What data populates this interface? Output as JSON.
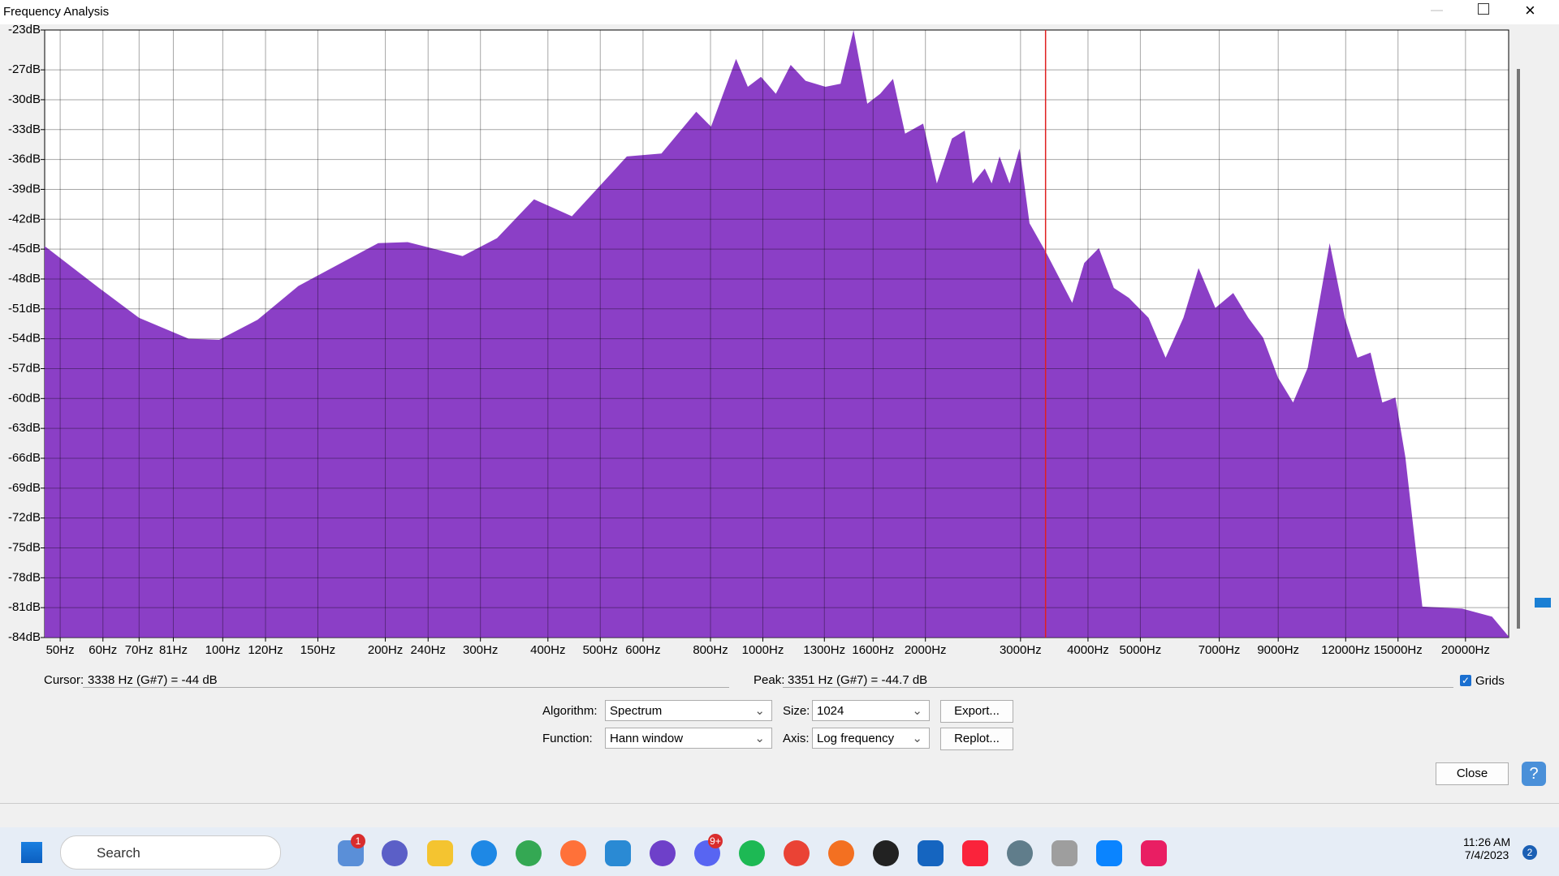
{
  "window": {
    "title": "Frequency Analysis"
  },
  "chart_data": {
    "type": "area",
    "color": "#8b3fc6",
    "log_x": true,
    "grid": true,
    "xlim": [
      46.8,
      24040
    ],
    "ylim": [
      -84,
      -23
    ],
    "xticks": [
      {
        "value": 50,
        "label": "50Hz"
      },
      {
        "value": 60,
        "label": "60Hz"
      },
      {
        "value": 70,
        "label": "70Hz"
      },
      {
        "value": 81,
        "label": "81Hz"
      },
      {
        "value": 100,
        "label": "100Hz"
      },
      {
        "value": 120,
        "label": "120Hz"
      },
      {
        "value": 150,
        "label": "150Hz"
      },
      {
        "value": 200,
        "label": "200Hz"
      },
      {
        "value": 240,
        "label": "240Hz"
      },
      {
        "value": 300,
        "label": "300Hz"
      },
      {
        "value": 400,
        "label": "400Hz"
      },
      {
        "value": 500,
        "label": "500Hz"
      },
      {
        "value": 600,
        "label": "600Hz"
      },
      {
        "value": 800,
        "label": "800Hz"
      },
      {
        "value": 1000,
        "label": "1000Hz"
      },
      {
        "value": 1300,
        "label": "1300Hz"
      },
      {
        "value": 1600,
        "label": "1600Hz"
      },
      {
        "value": 2000,
        "label": "2000Hz"
      },
      {
        "value": 3000,
        "label": "3000Hz"
      },
      {
        "value": 4000,
        "label": "4000Hz"
      },
      {
        "value": 5000,
        "label": "5000Hz"
      },
      {
        "value": 7000,
        "label": "7000Hz"
      },
      {
        "value": 9000,
        "label": "9000Hz"
      },
      {
        "value": 12000,
        "label": "12000Hz"
      },
      {
        "value": 15000,
        "label": "15000Hz"
      },
      {
        "value": 20000,
        "label": "20000Hz"
      }
    ],
    "yticks": [
      {
        "value": -23,
        "label": "-23dB"
      },
      {
        "value": -27,
        "label": "-27dB"
      },
      {
        "value": -30,
        "label": "-30dB"
      },
      {
        "value": -33,
        "label": "-33dB"
      },
      {
        "value": -36,
        "label": "-36dB"
      },
      {
        "value": -39,
        "label": "-39dB"
      },
      {
        "value": -42,
        "label": "-42dB"
      },
      {
        "value": -45,
        "label": "-45dB"
      },
      {
        "value": -48,
        "label": "-48dB"
      },
      {
        "value": -51,
        "label": "-51dB"
      },
      {
        "value": -54,
        "label": "-54dB"
      },
      {
        "value": -57,
        "label": "-57dB"
      },
      {
        "value": -60,
        "label": "-60dB"
      },
      {
        "value": -63,
        "label": "-63dB"
      },
      {
        "value": -66,
        "label": "-66dB"
      },
      {
        "value": -69,
        "label": "-69dB"
      },
      {
        "value": -72,
        "label": "-72dB"
      },
      {
        "value": -75,
        "label": "-75dB"
      },
      {
        "value": -78,
        "label": "-78dB"
      },
      {
        "value": -81,
        "label": "-81dB"
      },
      {
        "value": -84,
        "label": "-84dB"
      }
    ],
    "cursor_hz": 3338,
    "x": [
      46.8,
      59,
      70,
      86.5,
      98.5,
      116,
      138,
      194,
      220,
      278,
      322,
      377,
      443,
      560,
      649,
      753,
      802,
      892,
      938,
      992,
      1057,
      1126,
      1200,
      1306,
      1393,
      1472,
      1561,
      1649,
      1742,
      1834,
      1981,
      2100,
      2240,
      2365,
      2447,
      2576,
      2653,
      2743,
      2863,
      2987,
      3117,
      3350,
      3740,
      3936,
      4190,
      4466,
      4762,
      5180,
      5568,
      6008,
      6408,
      6886,
      7430,
      7925,
      8440,
      8990,
      9590,
      10210,
      11210,
      11950,
      12620,
      13340,
      14030,
      14830,
      15480,
      16640,
      19720,
      22390,
      24040
    ],
    "y": [
      -44.7,
      -48.9,
      -51.9,
      -54,
      -54.1,
      -52.1,
      -48.7,
      -44.4,
      -44.3,
      -45.7,
      -43.9,
      -40,
      -41.7,
      -35.7,
      -35.4,
      -31.2,
      -32.7,
      -25.9,
      -28.7,
      -27.7,
      -29.4,
      -26.5,
      -28.1,
      -28.7,
      -28.4,
      -23,
      -30.4,
      -29.4,
      -27.9,
      -33.4,
      -32.4,
      -38.4,
      -33.9,
      -33.1,
      -38.4,
      -36.9,
      -38.4,
      -35.7,
      -38.4,
      -34.9,
      -42.4,
      -45.4,
      -50.4,
      -46.4,
      -44.9,
      -48.9,
      -49.9,
      -51.9,
      -55.9,
      -51.9,
      -46.9,
      -50.9,
      -49.4,
      -51.9,
      -53.9,
      -57.9,
      -60.4,
      -56.9,
      -44.4,
      -51.9,
      -55.9,
      -55.4,
      -60.4,
      -59.9,
      -65.9,
      -80.9,
      -81.1,
      -81.9,
      -83.9
    ]
  },
  "status": {
    "cursor_label": "Cursor:",
    "cursor_value": "3338 Hz (G#7) = -44 dB",
    "peak_label": "Peak:",
    "peak_value": "3351 Hz (G#7) = -44.7 dB",
    "grids": "Grids"
  },
  "controls": {
    "algorithm_label": "Algorithm:",
    "algorithm": "Spectrum",
    "size_label": "Size:",
    "size": "1024",
    "export": "Export...",
    "function_label": "Function:",
    "function": "Hann window",
    "axis_label": "Axis:",
    "axis": "Log frequency",
    "replot": "Replot...",
    "close": "Close"
  },
  "taskbar": {
    "search": "Search",
    "time": "11:26 AM",
    "date": "7/4/2023",
    "badge_weather": "1",
    "badge_discord": "9+",
    "badge_notifications": "2"
  }
}
